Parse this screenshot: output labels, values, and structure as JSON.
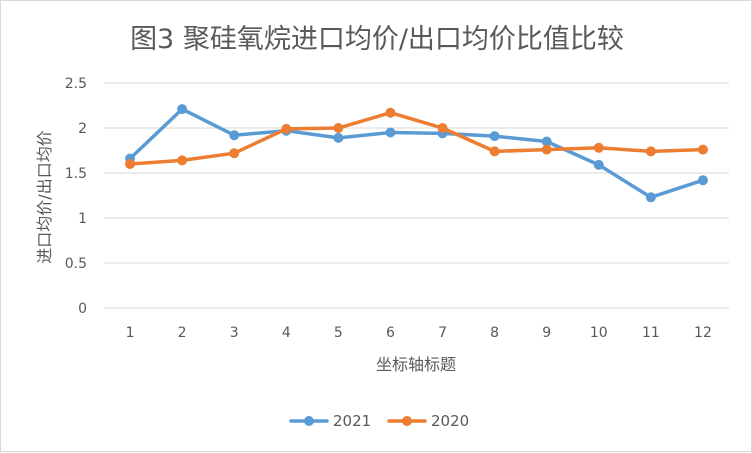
{
  "chart_data": {
    "type": "line",
    "title": "图3  聚硅氧烷进口均价/出口均价比值比较",
    "xlabel": "坐标轴标题",
    "ylabel": "进口均价/出口均价",
    "categories": [
      "1",
      "2",
      "3",
      "4",
      "5",
      "6",
      "7",
      "8",
      "9",
      "10",
      "11",
      "12"
    ],
    "ylim": [
      0,
      2.5
    ],
    "yticks": [
      "0",
      "0.5",
      "1",
      "1.5",
      "2",
      "2.5"
    ],
    "grid": true,
    "legend_position": "bottom",
    "series": [
      {
        "name": "2021",
        "color": "#5b9bd5",
        "values": [
          1.66,
          2.21,
          1.92,
          1.97,
          1.89,
          1.95,
          1.94,
          1.91,
          1.85,
          1.59,
          1.23,
          1.42
        ]
      },
      {
        "name": "2020",
        "color": "#ed7d31",
        "values": [
          1.6,
          1.64,
          1.72,
          1.99,
          2.0,
          2.17,
          2.0,
          1.74,
          1.76,
          1.78,
          1.74,
          1.76
        ]
      }
    ]
  }
}
